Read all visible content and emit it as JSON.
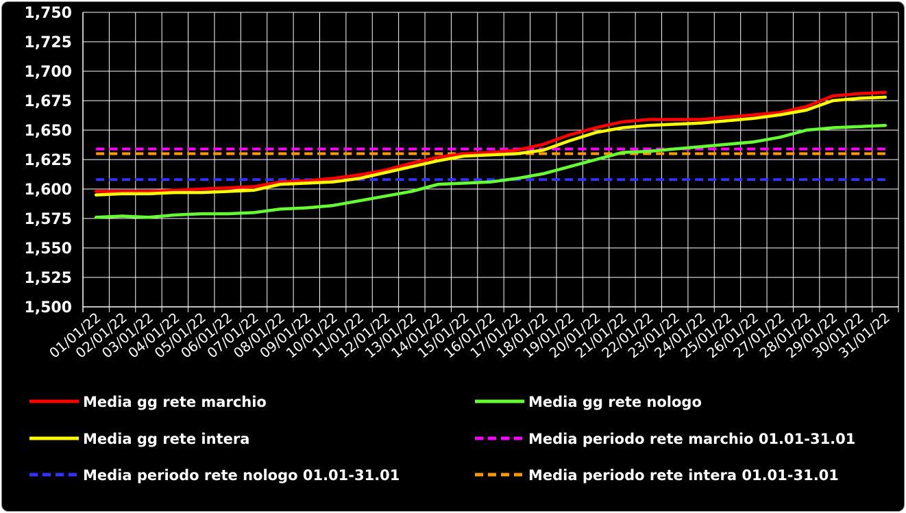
{
  "chart_data": {
    "type": "line",
    "title": "",
    "xlabel": "",
    "ylabel": "",
    "ylim": [
      1500,
      1750
    ],
    "yticks": [
      "1,500",
      "1,525",
      "1,550",
      "1,575",
      "1,600",
      "1,625",
      "1,650",
      "1,675",
      "1,700",
      "1,725",
      "1,750"
    ],
    "ytick_values": [
      1500,
      1525,
      1550,
      1575,
      1600,
      1625,
      1650,
      1675,
      1700,
      1725,
      1750
    ],
    "grid": true,
    "legend_position": "bottom",
    "x": [
      "01/01/22",
      "02/01/22",
      "03/01/22",
      "04/01/22",
      "05/01/22",
      "06/01/22",
      "07/01/22",
      "08/01/22",
      "09/01/22",
      "10/01/22",
      "11/01/22",
      "12/01/22",
      "13/01/22",
      "14/01/22",
      "15/01/22",
      "16/01/22",
      "17/01/22",
      "18/01/22",
      "19/01/22",
      "20/01/22",
      "21/01/22",
      "22/01/22",
      "23/01/22",
      "24/01/22",
      "25/01/22",
      "26/01/22",
      "27/01/22",
      "28/01/22",
      "29/01/22",
      "30/01/22",
      "31/01/22"
    ],
    "series": [
      {
        "name": "Media gg rete marchio",
        "color": "#ff0000",
        "dashed": false,
        "values": [
          1598,
          1598,
          1598,
          1599,
          1600,
          1601,
          1602,
          1606,
          1607,
          1609,
          1612,
          1616,
          1622,
          1627,
          1630,
          1631,
          1633,
          1638,
          1646,
          1652,
          1657,
          1659,
          1659,
          1659,
          1661,
          1663,
          1665,
          1670,
          1679,
          1681,
          1682
        ]
      },
      {
        "name": "Media gg rete nologo",
        "color": "#66ff33",
        "dashed": false,
        "values": [
          1576,
          1577,
          1576,
          1578,
          1579,
          1579,
          1580,
          1583,
          1584,
          1586,
          1590,
          1594,
          1598,
          1604,
          1605,
          1606,
          1609,
          1613,
          1619,
          1625,
          1631,
          1632,
          1634,
          1636,
          1638,
          1640,
          1644,
          1650,
          1652,
          1653,
          1654
        ]
      },
      {
        "name": "Media gg rete intera",
        "color": "#ffff00",
        "dashed": false,
        "values": [
          1595,
          1596,
          1596,
          1597,
          1597,
          1598,
          1599,
          1604,
          1605,
          1606,
          1609,
          1614,
          1619,
          1624,
          1628,
          1629,
          1630,
          1633,
          1641,
          1648,
          1652,
          1654,
          1655,
          1656,
          1658,
          1660,
          1663,
          1667,
          1675,
          1677,
          1678
        ]
      },
      {
        "name": "Media periodo rete marchio 01.01-31.01",
        "color": "#ff00ff",
        "dashed": true,
        "values": [
          1634,
          1634,
          1634,
          1634,
          1634,
          1634,
          1634,
          1634,
          1634,
          1634,
          1634,
          1634,
          1634,
          1634,
          1634,
          1634,
          1634,
          1634,
          1634,
          1634,
          1634,
          1634,
          1634,
          1634,
          1634,
          1634,
          1634,
          1634,
          1634,
          1634,
          1634
        ]
      },
      {
        "name": "Media periodo rete nologo 01.01-31.01",
        "color": "#3333ff",
        "dashed": true,
        "values": [
          1608,
          1608,
          1608,
          1608,
          1608,
          1608,
          1608,
          1608,
          1608,
          1608,
          1608,
          1608,
          1608,
          1608,
          1608,
          1608,
          1608,
          1608,
          1608,
          1608,
          1608,
          1608,
          1608,
          1608,
          1608,
          1608,
          1608,
          1608,
          1608,
          1608,
          1608
        ]
      },
      {
        "name": "Media periodo rete intera 01.01-31.01",
        "color": "#ff9900",
        "dashed": true,
        "values": [
          1630,
          1630,
          1630,
          1630,
          1630,
          1630,
          1630,
          1630,
          1630,
          1630,
          1630,
          1630,
          1630,
          1630,
          1630,
          1630,
          1630,
          1630,
          1630,
          1630,
          1630,
          1630,
          1630,
          1630,
          1630,
          1630,
          1630,
          1630,
          1630,
          1630,
          1630
        ]
      }
    ]
  }
}
